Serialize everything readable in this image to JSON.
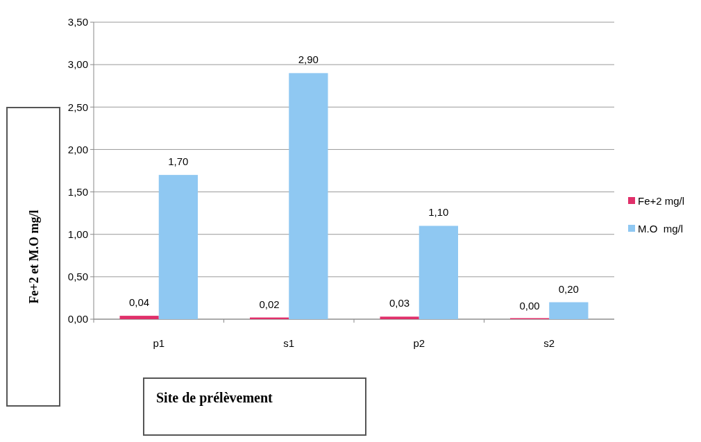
{
  "chart_data": {
    "type": "bar",
    "xlabel": "Site de prélèvement",
    "ylabel": "Fe+2 et M.O mg/l",
    "categories": [
      "p1",
      "s1",
      "p2",
      "s2"
    ],
    "series": [
      {
        "name": "Fe+2 mg/l",
        "color": "#e0306a",
        "values": [
          0.04,
          0.02,
          0.03,
          0.0
        ],
        "value_labels": [
          "0,04",
          "0,02",
          "0,03",
          "0,00"
        ]
      },
      {
        "name": "M.O  mg/l",
        "color": "#8fc8f2",
        "values": [
          1.7,
          2.9,
          1.1,
          0.2
        ],
        "value_labels": [
          "1,70",
          "2,90",
          "1,10",
          "0,20"
        ]
      }
    ],
    "ylim": [
      0,
      3.5
    ],
    "yticks": [
      {
        "value": 0,
        "label": "0,00"
      },
      {
        "value": 0.5,
        "label": "0,50"
      },
      {
        "value": 1,
        "label": "1,00"
      },
      {
        "value": 1.5,
        "label": "1,50"
      },
      {
        "value": 2,
        "label": "2,00"
      },
      {
        "value": 2.5,
        "label": "2,50"
      },
      {
        "value": 3,
        "label": "3,00"
      },
      {
        "value": 3.5,
        "label": "3,50"
      }
    ],
    "grid": "y",
    "legend": "right"
  }
}
